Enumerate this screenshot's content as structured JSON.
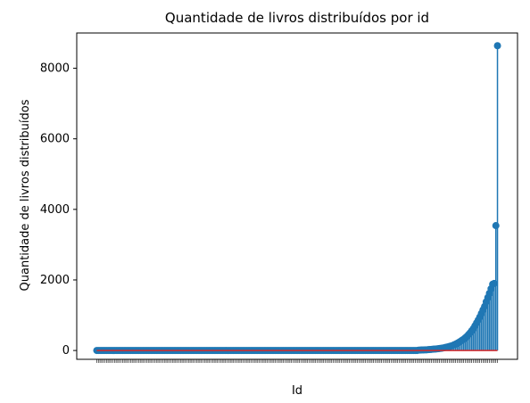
{
  "chart_data": {
    "type": "stem",
    "title": "Quantidade de livros distribuídos por id",
    "xlabel": "Id",
    "ylabel": "Quantidade de livros distribuídos",
    "ylim": [
      -250,
      9000
    ],
    "yticks": [
      0,
      2000,
      4000,
      6000,
      8000
    ],
    "grid": false,
    "legend": "none",
    "n_points": 250,
    "points_flat_count": 208,
    "tail_values": [
      10,
      12,
      14,
      16,
      18,
      20,
      24,
      28,
      32,
      36,
      40,
      45,
      50,
      56,
      62,
      70,
      80,
      90,
      100,
      112,
      125,
      140,
      160,
      180,
      205,
      230,
      260,
      290,
      320,
      360,
      400,
      450,
      500,
      560,
      620,
      700,
      780,
      860,
      950,
      1050,
      1150,
      1250,
      1380,
      1500,
      1620,
      1750,
      1880,
      1900,
      3540,
      8640
    ],
    "baseline": 0,
    "colors": {
      "stem": "#1f77b4",
      "marker": "#1f77b4",
      "baseline": "#d62728",
      "axes": "#000000"
    }
  }
}
